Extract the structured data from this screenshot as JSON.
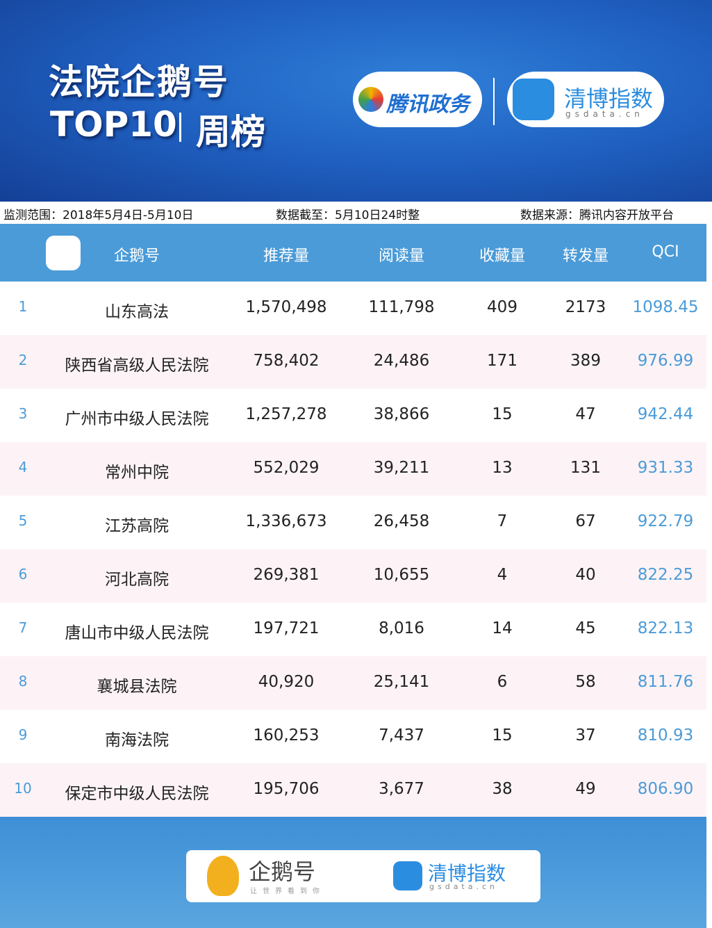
{
  "header": {
    "title": "法院企鹅号",
    "subtitle_left": "TOP10",
    "subtitle_right": "周榜",
    "logo_left": "腾讯政务",
    "logo_right": "清博指数",
    "logo_right_sub": "gsdata.cn"
  },
  "info": {
    "range": "监测范围：2018年5月4日-5月10日",
    "cutoff": "数据截至：5月10日24时整",
    "source": "数据来源：腾讯内容开放平台"
  },
  "table": {
    "header": [
      "企鹅号",
      "推荐量",
      "阅读量",
      "收藏量",
      "转发量",
      "QCI"
    ],
    "rows": [
      [
        "1",
        "山东高法",
        "1,570,498",
        "111,798",
        "409",
        "2173",
        "1098.45"
      ],
      [
        "2",
        "陕西省高级人民法院",
        "758,402",
        "24,486",
        "171",
        "389",
        "976.99"
      ],
      [
        "3",
        "广州市中级人民法院",
        "1,257,278",
        "38,866",
        "15",
        "47",
        "942.44"
      ],
      [
        "4",
        "常州中院",
        "552,029",
        "39,211",
        "13",
        "131",
        "931.33"
      ],
      [
        "5",
        "江苏高院",
        "1,336,673",
        "26,458",
        "7",
        "67",
        "922.79"
      ],
      [
        "6",
        "河北高院",
        "269,381",
        "10,655",
        "4",
        "40",
        "822.25"
      ],
      [
        "7",
        "唐山市中级人民法院",
        "197,721",
        "8,016",
        "14",
        "45",
        "822.13"
      ],
      [
        "8",
        "襄城县法院",
        "40,920",
        "25,141",
        "6",
        "58",
        "811.76"
      ],
      [
        "9",
        "南海法院",
        "160,253",
        "7,437",
        "15",
        "37",
        "810.93"
      ],
      [
        "10",
        "保定市中级人民法院",
        "195,706",
        "3,677",
        "38",
        "49",
        "806.90"
      ]
    ]
  },
  "footer": {
    "logo_left": "企鹅号",
    "logo_left_sub": "让世界看到你",
    "logo_right": "清博指数",
    "logo_right_sub": "gsdata.cn"
  }
}
